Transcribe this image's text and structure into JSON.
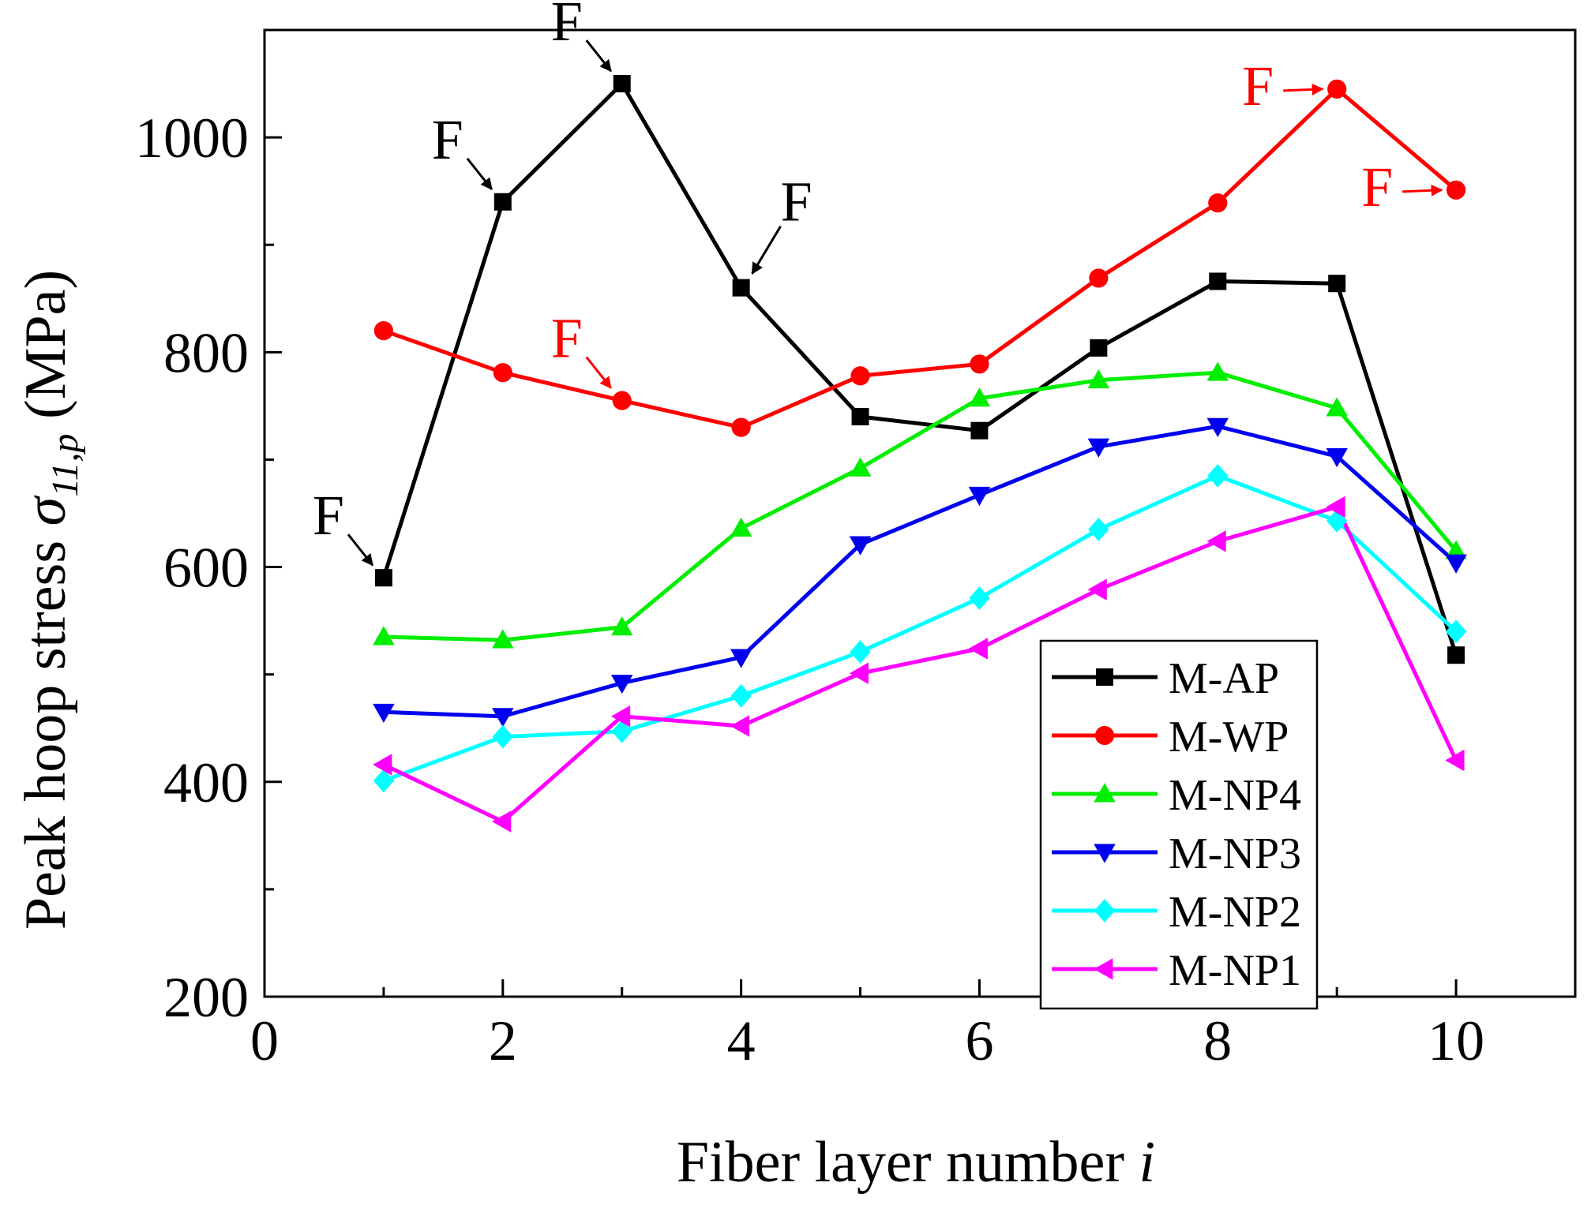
{
  "chart_data": {
    "type": "line",
    "title": "",
    "xlabel": "Fiber layer number",
    "xlabel_var": "i",
    "ylabel_prefix": "Peak hoop stress",
    "ylabel_symbol": "σ",
    "ylabel_subscript": "11,p",
    "ylabel_unit": "(MPa)",
    "xlim": [
      0,
      11
    ],
    "ylim": [
      200,
      1100
    ],
    "x_ticks_major": [
      0,
      2,
      4,
      6,
      8,
      10
    ],
    "x_ticks_minor": [
      1,
      3,
      5,
      7,
      9,
      11
    ],
    "y_ticks_major": [
      200,
      400,
      600,
      800,
      1000
    ],
    "y_ticks_minor": [
      300,
      500,
      700,
      900,
      1100
    ],
    "x_tick_labels": [
      "0",
      "2",
      "4",
      "6",
      "8",
      "10"
    ],
    "y_tick_labels": [
      "200",
      "400",
      "600",
      "800",
      "1000"
    ],
    "x": [
      1,
      2,
      3,
      4,
      5,
      6,
      7,
      8,
      9,
      10
    ],
    "series": [
      {
        "name": "M-AP",
        "color": "#000000",
        "marker": "square",
        "values": [
          590,
          940,
          1050,
          860,
          740,
          727,
          804,
          866,
          864,
          518
        ]
      },
      {
        "name": "M-WP",
        "color": "#ff0000",
        "marker": "circle",
        "values": [
          820,
          781,
          755,
          730,
          778,
          789,
          869,
          939,
          1045,
          951
        ]
      },
      {
        "name": "M-NP4",
        "color": "#00ee00",
        "marker": "triangle-up",
        "values": [
          535,
          532,
          544,
          636,
          692,
          757,
          774,
          781,
          748,
          615
        ]
      },
      {
        "name": "M-NP3",
        "color": "#0000ee",
        "marker": "triangle-down",
        "values": [
          465,
          461,
          492,
          516,
          621,
          667,
          712,
          731,
          703,
          604
        ]
      },
      {
        "name": "M-NP2",
        "color": "#00ffff",
        "marker": "diamond",
        "values": [
          401,
          442,
          447,
          480,
          521,
          571,
          635,
          685,
          643,
          540
        ]
      },
      {
        "name": "M-NP1",
        "color": "#ff00ff",
        "marker": "triangle-left",
        "values": [
          416,
          363,
          461,
          452,
          501,
          524,
          579,
          624,
          656,
          420
        ]
      }
    ],
    "annotations": [
      {
        "text": "F",
        "series": "M-AP",
        "x": 1,
        "y": 590,
        "color": "#000000",
        "from": "top-left"
      },
      {
        "text": "F",
        "series": "M-AP",
        "x": 2,
        "y": 940,
        "color": "#000000",
        "from": "top-left"
      },
      {
        "text": "F",
        "series": "M-AP",
        "x": 3,
        "y": 1050,
        "color": "#000000",
        "from": "top-left"
      },
      {
        "text": "F",
        "series": "M-AP",
        "x": 4,
        "y": 860,
        "color": "#000000",
        "from": "top-right"
      },
      {
        "text": "F",
        "series": "M-WP",
        "x": 3,
        "y": 755,
        "color": "#ff0000",
        "from": "top-left"
      },
      {
        "text": "F",
        "series": "M-WP",
        "x": 9,
        "y": 1045,
        "color": "#ff0000",
        "from": "left"
      },
      {
        "text": "F",
        "series": "M-WP",
        "x": 10,
        "y": 951,
        "color": "#ff0000",
        "from": "left"
      }
    ],
    "legend_position": "bottom-right"
  }
}
